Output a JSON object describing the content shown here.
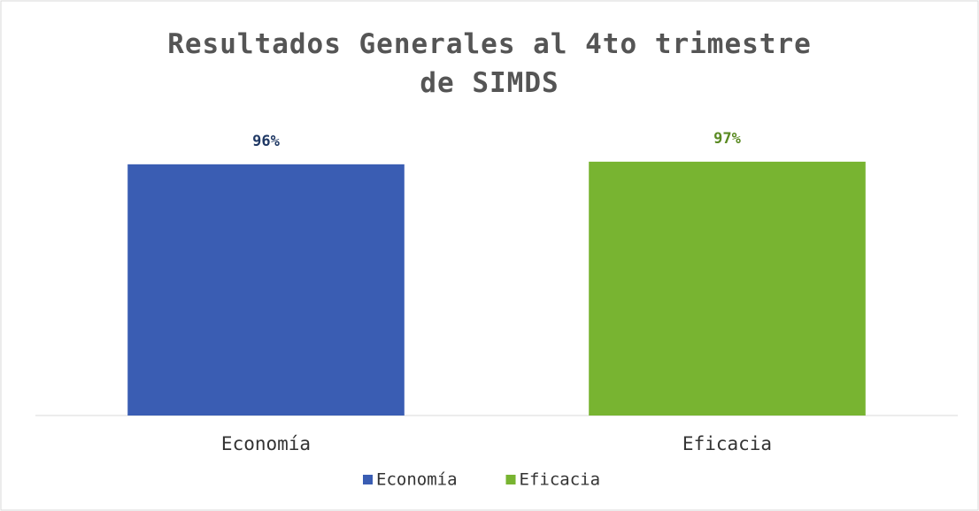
{
  "chart_data": {
    "type": "bar",
    "title": "Resultados Generales al 4to trimestre de SIMDS",
    "categories": [
      "Economía",
      "Eficacia"
    ],
    "series": [
      {
        "name": "Economía",
        "color": "#3a5db3",
        "values": [
          96,
          null
        ],
        "value_labels": [
          "96%",
          null
        ]
      },
      {
        "name": "Eficacia",
        "color": "#78b431",
        "values": [
          null,
          97
        ],
        "value_labels": [
          null,
          "97%"
        ]
      }
    ],
    "ylim": [
      0,
      100
    ],
    "legend": "bottom"
  }
}
